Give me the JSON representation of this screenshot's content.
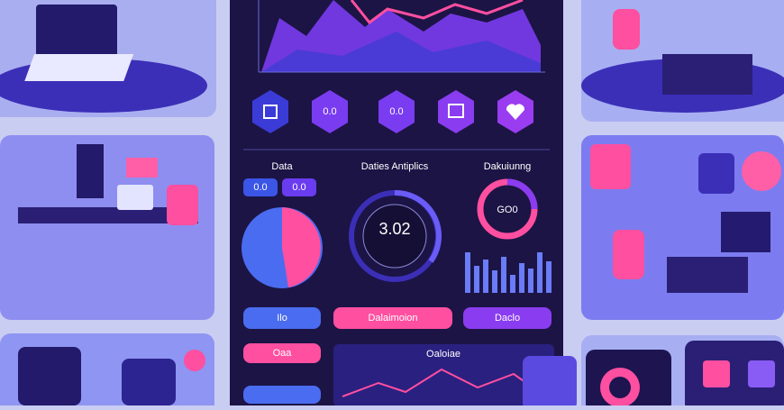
{
  "panels": {
    "data": {
      "title": "Data",
      "badges": [
        "0.0",
        "0.0"
      ]
    },
    "analytics": {
      "title": "Daties Antiplics",
      "value": "3.02"
    },
    "dashboard": {
      "title": "Dakuiunng",
      "value": "GO0"
    }
  },
  "hex_labels": [
    "0.0",
    "0.0"
  ],
  "buttons": [
    "Ilo",
    "Dalaimoion",
    "Daclo"
  ],
  "bottom": {
    "button": "Oaa",
    "chart_title": "Oaloiae"
  }
}
